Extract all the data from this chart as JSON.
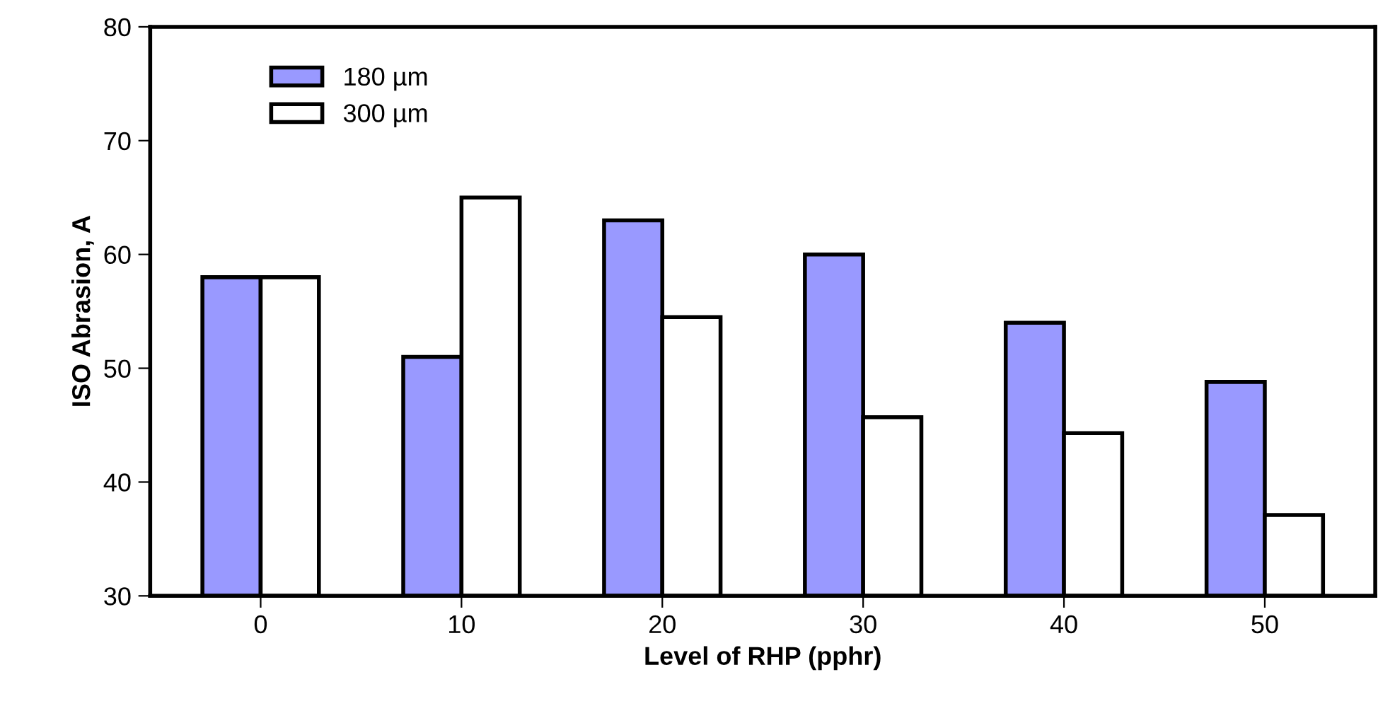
{
  "chart_data": {
    "type": "bar",
    "xlabel": "Level of RHP (pphr)",
    "ylabel": "ISO Abrasion, A",
    "categories": [
      "0",
      "10",
      "20",
      "30",
      "40",
      "50"
    ],
    "series": [
      {
        "name": "180 µm",
        "color": "#9999ff",
        "values": [
          58,
          51,
          63,
          60,
          54,
          48.8
        ]
      },
      {
        "name": "300 µm",
        "color": "#ffffff",
        "values": [
          58,
          65,
          54.5,
          45.7,
          44.3,
          37.1
        ]
      }
    ],
    "ylim": [
      30,
      80
    ],
    "yticks": [
      30,
      40,
      50,
      60,
      70,
      80
    ],
    "grid": false,
    "legend": "top left"
  }
}
